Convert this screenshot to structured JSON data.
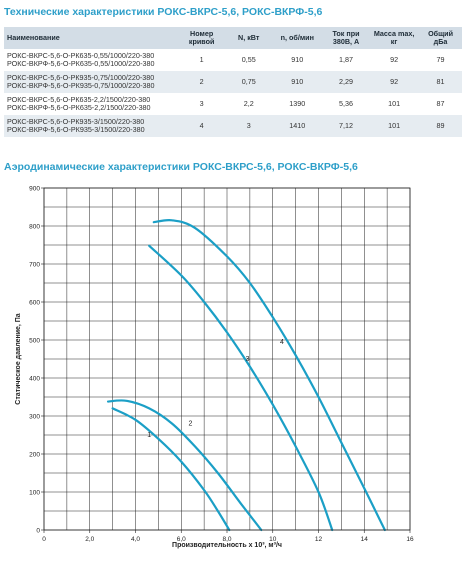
{
  "specs_title": "Технические характеристики РОКС-ВКРС-5,6, РОКС-ВКРФ-5,6",
  "aero_title": "Аэродинамические характеристики РОКС-ВКРС-5,6, РОКС-ВКРФ-5,6",
  "table": {
    "headers": [
      "Наименование",
      "Номер кривой",
      "N, кВт",
      "n, об/мин",
      "Ток при 380В, А",
      "Масса max, кг",
      "Общий дБа"
    ],
    "rows": [
      {
        "names": [
          "РОКС-ВКРС-5,6-О-РК635-0,55/1000/220-380",
          "РОКС-ВКРФ-5,6-О-РК635-0,55/1000/220-380"
        ],
        "curve": "1",
        "power": "0,55",
        "rpm": "910",
        "current": "1,87",
        "mass": "92",
        "noise": "79"
      },
      {
        "names": [
          "РОКС-ВКРС-5,6-О-РК935-0,75/1000/220-380",
          "РОКС-ВКРФ-5,6-О-РК935-0,75/1000/220-380"
        ],
        "curve": "2",
        "power": "0,75",
        "rpm": "910",
        "current": "2,29",
        "mass": "92",
        "noise": "81"
      },
      {
        "names": [
          "РОКС-ВКРС-5,6-О-РК635-2,2/1500/220-380",
          "РОКС-ВКРФ-5,6-О-РК635-2,2/1500/220-380"
        ],
        "curve": "3",
        "power": "2,2",
        "rpm": "1390",
        "current": "5,36",
        "mass": "101",
        "noise": "87"
      },
      {
        "names": [
          "РОКС-ВКРС-5,6-О-РК935-3/1500/220-380",
          "РОКС-ВКРФ-5,6-О-РК935-3/1500/220-380"
        ],
        "curve": "4",
        "power": "3",
        "rpm": "1410",
        "current": "7,12",
        "mass": "101",
        "noise": "89"
      }
    ]
  },
  "chart_data": {
    "type": "line",
    "xlabel": "Производительность х 10³, м³/ч",
    "ylabel": "Статическое давление, Па",
    "xlim": [
      0,
      16
    ],
    "ylim": [
      0,
      900
    ],
    "x_ticks": [
      "0",
      "2,0",
      "4,0",
      "6,0",
      "8,0",
      "10",
      "12",
      "14",
      "16"
    ],
    "y_ticks": [
      "0",
      "100",
      "200",
      "300",
      "400",
      "500",
      "600",
      "700",
      "800",
      "900"
    ],
    "grid": true,
    "line_color": "#1b9fc6",
    "series": [
      {
        "name": "1",
        "label_at": [
          4.6,
          245
        ],
        "points": [
          [
            3.0,
            320
          ],
          [
            4.0,
            290
          ],
          [
            5.0,
            240
          ],
          [
            6.0,
            180
          ],
          [
            7.0,
            105
          ],
          [
            7.6,
            50
          ],
          [
            8.1,
            0
          ]
        ]
      },
      {
        "name": "2",
        "label_at": [
          6.4,
          275
        ],
        "points": [
          [
            2.8,
            338
          ],
          [
            3.6,
            340
          ],
          [
            4.6,
            320
          ],
          [
            5.6,
            280
          ],
          [
            6.6,
            220
          ],
          [
            7.6,
            150
          ],
          [
            8.6,
            70
          ],
          [
            9.5,
            0
          ]
        ]
      },
      {
        "name": "3",
        "label_at": [
          8.9,
          445
        ],
        "points": [
          [
            4.6,
            748
          ],
          [
            6.0,
            670
          ],
          [
            7.0,
            600
          ],
          [
            8.0,
            520
          ],
          [
            9.0,
            430
          ],
          [
            10.0,
            330
          ],
          [
            11.0,
            220
          ],
          [
            12.0,
            100
          ],
          [
            12.6,
            0
          ]
        ]
      },
      {
        "name": "4",
        "label_at": [
          10.4,
          490
        ],
        "points": [
          [
            4.8,
            810
          ],
          [
            5.6,
            815
          ],
          [
            6.6,
            795
          ],
          [
            8.0,
            720
          ],
          [
            9.0,
            650
          ],
          [
            10.0,
            560
          ],
          [
            11.0,
            460
          ],
          [
            12.0,
            350
          ],
          [
            13.0,
            230
          ],
          [
            14.0,
            110
          ],
          [
            14.9,
            0
          ]
        ]
      }
    ]
  }
}
